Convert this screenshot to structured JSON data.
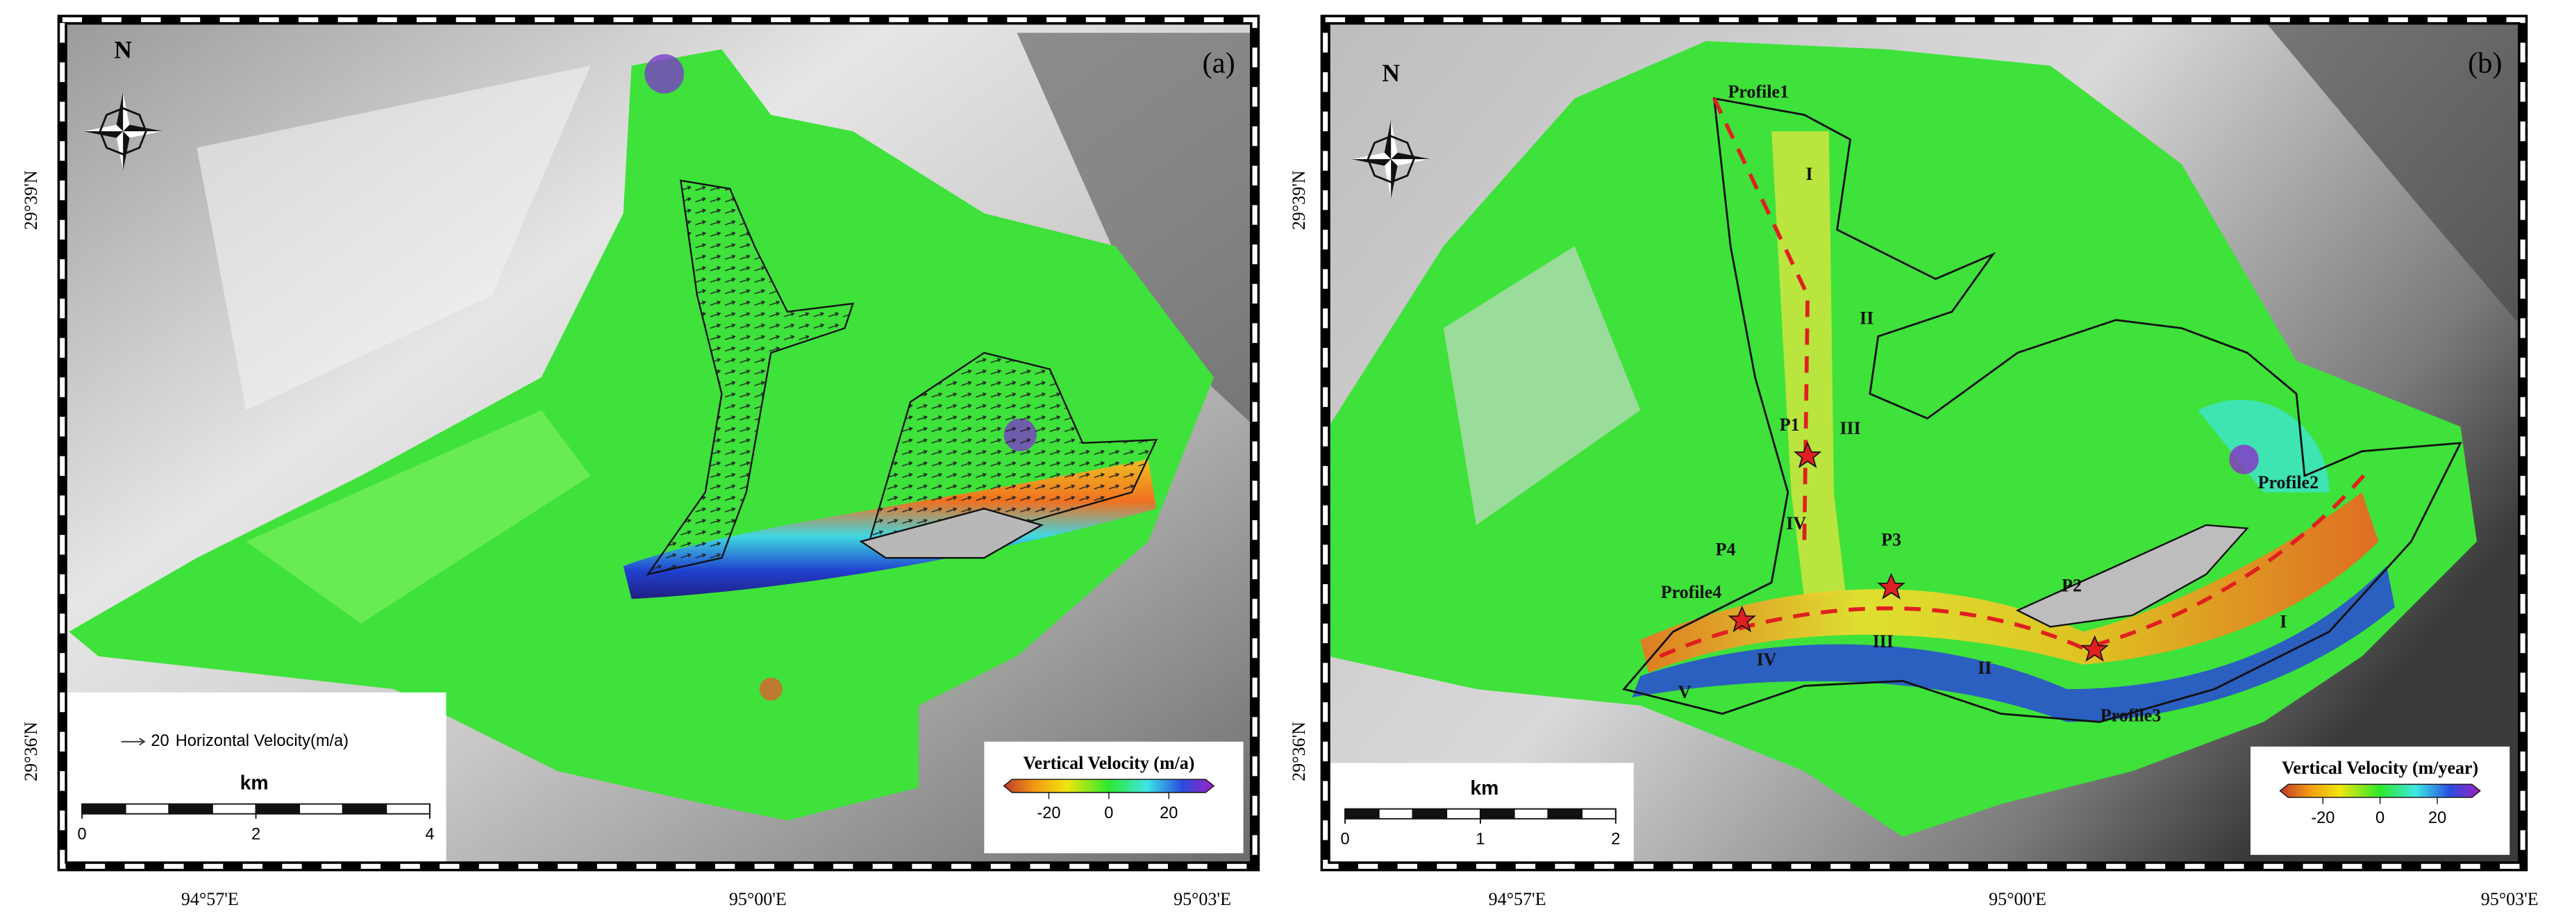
{
  "panels": [
    {
      "label": "(a)",
      "north": "N",
      "lat_labels": [
        "29°39'N",
        "29°36'N"
      ],
      "lon_labels": [
        "94°57'E",
        "95°00'E",
        "95°03'E"
      ],
      "scale_bar": {
        "unit": "km",
        "ticks": [
          0,
          2,
          4
        ]
      },
      "vector_legend": {
        "value": 20,
        "text": "Horizontal Velocity(m/a)"
      },
      "colorbar": {
        "title": "Vertical Velocity (m/a)",
        "lim": [
          -35,
          35
        ],
        "ticks": [
          -20,
          0,
          20
        ]
      }
    },
    {
      "label": "(b)",
      "north": "N",
      "lat_labels": [
        "29°39'N",
        "29°36'N"
      ],
      "lon_labels": [
        "94°57'E",
        "95°00'E",
        "95°03'E"
      ],
      "scale_bar": {
        "unit": "km",
        "ticks": [
          0,
          1,
          2
        ]
      },
      "colorbar": {
        "title": "Vertical Velocity (m/year)",
        "lim": [
          -35,
          35
        ],
        "ticks": [
          -20,
          0,
          20
        ]
      },
      "annotations": [
        "Profile1",
        "I",
        "II",
        "P1",
        "III",
        "IV",
        "P3",
        "P4",
        "Profile4",
        "P2",
        "III",
        "IV",
        "II",
        "V",
        "I",
        "Profile2",
        "Profile3"
      ]
    }
  ]
}
